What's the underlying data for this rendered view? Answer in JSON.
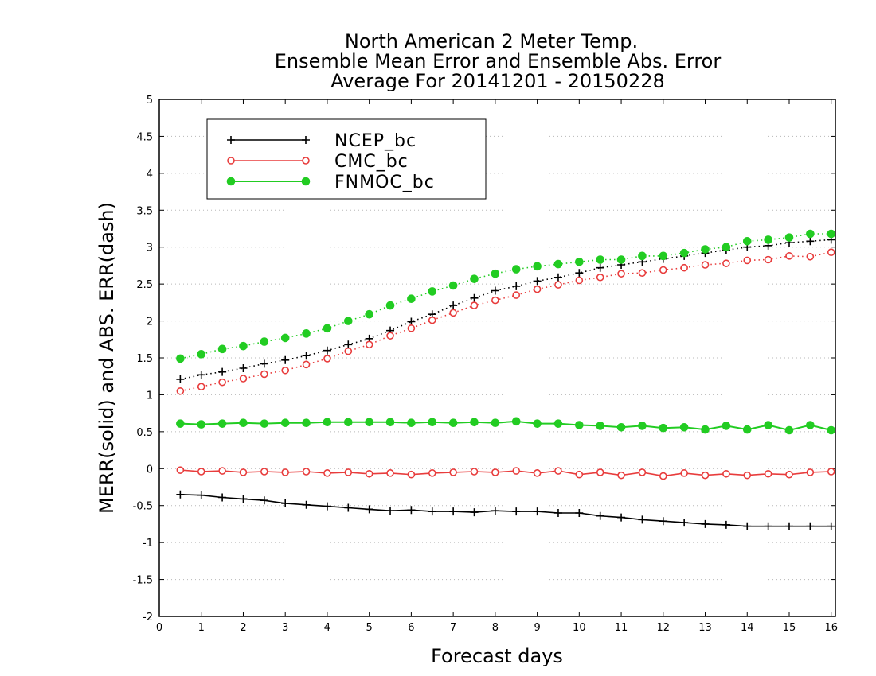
{
  "chart_data": {
    "type": "line",
    "title": [
      "North American 2 Meter Temp.",
      "Ensemble Mean Error and Ensemble Abs. Error",
      "Average For 20141201 - 20150228"
    ],
    "xlabel": "Forecast days",
    "ylabel": "MERR(solid) and ABS. ERR(dash)",
    "xlim": [
      0,
      16.1
    ],
    "ylim": [
      -2,
      5
    ],
    "xticks": [
      0,
      1,
      2,
      3,
      4,
      5,
      6,
      7,
      8,
      9,
      10,
      11,
      12,
      13,
      14,
      15,
      16
    ],
    "xtick_labels": [
      "0",
      "1",
      "2",
      "3",
      "4",
      "5",
      "6",
      "7",
      "8",
      "9",
      "10",
      "11",
      "12",
      "13",
      "14",
      "15",
      "16"
    ],
    "yticks": [
      -2,
      -1.5,
      -1,
      -0.5,
      0,
      0.5,
      1,
      1.5,
      2,
      2.5,
      3,
      3.5,
      4,
      4.5,
      5
    ],
    "ytick_labels": [
      "-2",
      "-1.5",
      "-1",
      "-0.5",
      "0",
      "0.5",
      "1",
      "1.5",
      "2",
      "2.5",
      "3",
      "3.5",
      "4",
      "4.5",
      "5"
    ],
    "grid": "horizontal dotted",
    "legend_position": "top-left",
    "x": [
      0.5,
      1,
      1.5,
      2,
      2.5,
      3,
      3.5,
      4,
      4.5,
      5,
      5.5,
      6,
      6.5,
      7,
      7.5,
      8,
      8.5,
      9,
      9.5,
      10,
      10.5,
      11,
      11.5,
      12,
      12.5,
      13,
      13.5,
      14,
      14.5,
      15,
      15.5,
      16
    ],
    "series": [
      {
        "name": "NCEP_bc",
        "color": "#000000",
        "marker": "plus",
        "merr": [
          -0.35,
          -0.36,
          -0.39,
          -0.41,
          -0.43,
          -0.47,
          -0.49,
          -0.51,
          -0.53,
          -0.55,
          -0.57,
          -0.56,
          -0.58,
          -0.58,
          -0.59,
          -0.57,
          -0.58,
          -0.58,
          -0.6,
          -0.6,
          -0.64,
          -0.66,
          -0.69,
          -0.71,
          -0.73,
          -0.75,
          -0.76,
          -0.78,
          -0.78,
          -0.78,
          -0.78,
          -0.78
        ],
        "abs_err": [
          1.21,
          1.27,
          1.31,
          1.36,
          1.42,
          1.47,
          1.53,
          1.6,
          1.68,
          1.76,
          1.87,
          1.99,
          2.09,
          2.21,
          2.31,
          2.41,
          2.47,
          2.54,
          2.59,
          2.65,
          2.72,
          2.76,
          2.8,
          2.84,
          2.88,
          2.92,
          2.96,
          3.0,
          3.02,
          3.06,
          3.08,
          3.1
        ]
      },
      {
        "name": "CMC_bc",
        "color": "#e83c3c",
        "marker": "open-circle",
        "merr": [
          -0.02,
          -0.04,
          -0.03,
          -0.05,
          -0.04,
          -0.05,
          -0.04,
          -0.06,
          -0.05,
          -0.07,
          -0.06,
          -0.08,
          -0.06,
          -0.05,
          -0.04,
          -0.05,
          -0.03,
          -0.06,
          -0.03,
          -0.08,
          -0.05,
          -0.09,
          -0.05,
          -0.1,
          -0.06,
          -0.09,
          -0.07,
          -0.09,
          -0.07,
          -0.08,
          -0.05,
          -0.04
        ],
        "abs_err": [
          1.05,
          1.11,
          1.17,
          1.22,
          1.28,
          1.33,
          1.41,
          1.49,
          1.59,
          1.68,
          1.8,
          1.9,
          2.01,
          2.11,
          2.21,
          2.28,
          2.35,
          2.43,
          2.49,
          2.55,
          2.59,
          2.64,
          2.65,
          2.69,
          2.72,
          2.76,
          2.78,
          2.82,
          2.83,
          2.88,
          2.87,
          2.93
        ]
      },
      {
        "name": "FNMOC_bc",
        "color": "#22cc22",
        "marker": "filled-circle",
        "merr": [
          0.61,
          0.6,
          0.61,
          0.62,
          0.61,
          0.62,
          0.62,
          0.63,
          0.63,
          0.63,
          0.63,
          0.62,
          0.63,
          0.62,
          0.63,
          0.62,
          0.64,
          0.61,
          0.61,
          0.59,
          0.58,
          0.56,
          0.58,
          0.55,
          0.56,
          0.53,
          0.58,
          0.53,
          0.59,
          0.52,
          0.59,
          0.52
        ],
        "abs_err": [
          1.49,
          1.55,
          1.62,
          1.66,
          1.72,
          1.77,
          1.83,
          1.9,
          2.0,
          2.09,
          2.21,
          2.3,
          2.4,
          2.48,
          2.57,
          2.64,
          2.7,
          2.74,
          2.77,
          2.8,
          2.83,
          2.83,
          2.88,
          2.88,
          2.92,
          2.97,
          3.0,
          3.08,
          3.1,
          3.13,
          3.18,
          3.18
        ]
      }
    ]
  }
}
